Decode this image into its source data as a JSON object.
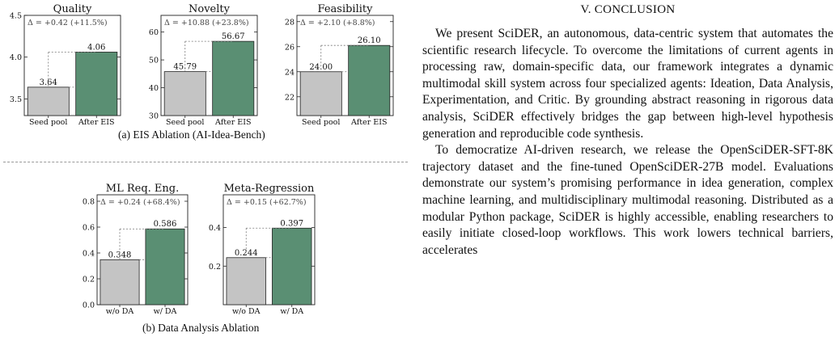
{
  "figure": {
    "captions": {
      "a": "(a) EIS Ablation (AI-Idea-Bench)",
      "b": "(b) Data Analysis Ablation"
    },
    "colors": {
      "baseline": "#c4c4c4",
      "improved": "#5a8f73",
      "edge": "#222222"
    }
  },
  "chart_data": [
    {
      "type": "bar",
      "title": "Quality",
      "categories": [
        "Seed pool",
        "After EIS"
      ],
      "values": [
        3.64,
        4.06
      ],
      "value_labels": [
        "3.64",
        "4.06"
      ],
      "ylim": [
        3.3,
        4.5
      ],
      "yticks": [
        3.5,
        4.0,
        4.5
      ],
      "ytick_labels": [
        "3.5",
        "4.0",
        "4.5"
      ],
      "delta_label": "Δ = +0.42 (+11.5%)"
    },
    {
      "type": "bar",
      "title": "Novelty",
      "categories": [
        "Seed pool",
        "After EIS"
      ],
      "values": [
        45.79,
        56.67
      ],
      "value_labels": [
        "45.79",
        "56.67"
      ],
      "ylim": [
        30,
        66
      ],
      "yticks": [
        30,
        40,
        50,
        60
      ],
      "ytick_labels": [
        "30",
        "40",
        "50",
        "60"
      ],
      "delta_label": "Δ = +10.88 (+23.8%)"
    },
    {
      "type": "bar",
      "title": "Feasibility",
      "categories": [
        "Seed pool",
        "After EIS"
      ],
      "values": [
        24.0,
        26.1
      ],
      "value_labels": [
        "24.00",
        "26.10"
      ],
      "ylim": [
        20.5,
        28.5
      ],
      "yticks": [
        22,
        24,
        26,
        28
      ],
      "ytick_labels": [
        "22",
        "24",
        "26",
        "28"
      ],
      "delta_label": "Δ = +2.10 (+8.8%)"
    },
    {
      "type": "bar",
      "title": "ML Req. Eng.",
      "categories": [
        "w/o DA",
        "w/ DA"
      ],
      "values": [
        0.348,
        0.586
      ],
      "value_labels": [
        "0.348",
        "0.586"
      ],
      "ylim": [
        0,
        0.85
      ],
      "yticks": [
        0,
        0.2,
        0.4,
        0.6,
        0.8
      ],
      "ytick_labels": [
        "0.0",
        "0.2",
        "0.4",
        "0.6",
        "0.8"
      ],
      "delta_label": "Δ = +0.24 (+68.4%)"
    },
    {
      "type": "bar",
      "title": "Meta-Regression",
      "categories": [
        "w/o DA",
        "w/ DA"
      ],
      "values": [
        0.244,
        0.397
      ],
      "value_labels": [
        "0.244",
        "0.397"
      ],
      "ylim": [
        0,
        0.57
      ],
      "yticks": [
        0.2,
        0.4
      ],
      "ytick_labels": [
        "0.2",
        "0.4"
      ],
      "delta_label": "Δ = +0.15 (+62.7%)"
    }
  ],
  "conclusion": {
    "heading": "V. CONCLUSION",
    "paragraphs": [
      "We present SciDER, an autonomous, data-centric system that automates the scientific research lifecycle. To overcome the limitations of current agents in processing raw, domain-specific data, our framework integrates a dynamic multimodal skill system across four specialized agents: Ideation, Data Analysis, Experimentation, and Critic. By grounding abstract reasoning in rigorous data analysis, SciDER effectively bridges the gap between high-level hypothesis generation and reproducible code synthesis.",
      "To democratize AI-driven research, we release the OpenSciDER-SFT-8K trajectory dataset and the fine-tuned OpenSciDER-27B model. Evaluations demonstrate our system’s promising performance in idea generation, complex machine learning, and multidisciplinary multimodal reasoning. Distributed as a modular Python package, SciDER is highly accessible, enabling researchers to easily initiate closed-loop workflows. This work lowers technical barriers, accelerates"
    ]
  }
}
